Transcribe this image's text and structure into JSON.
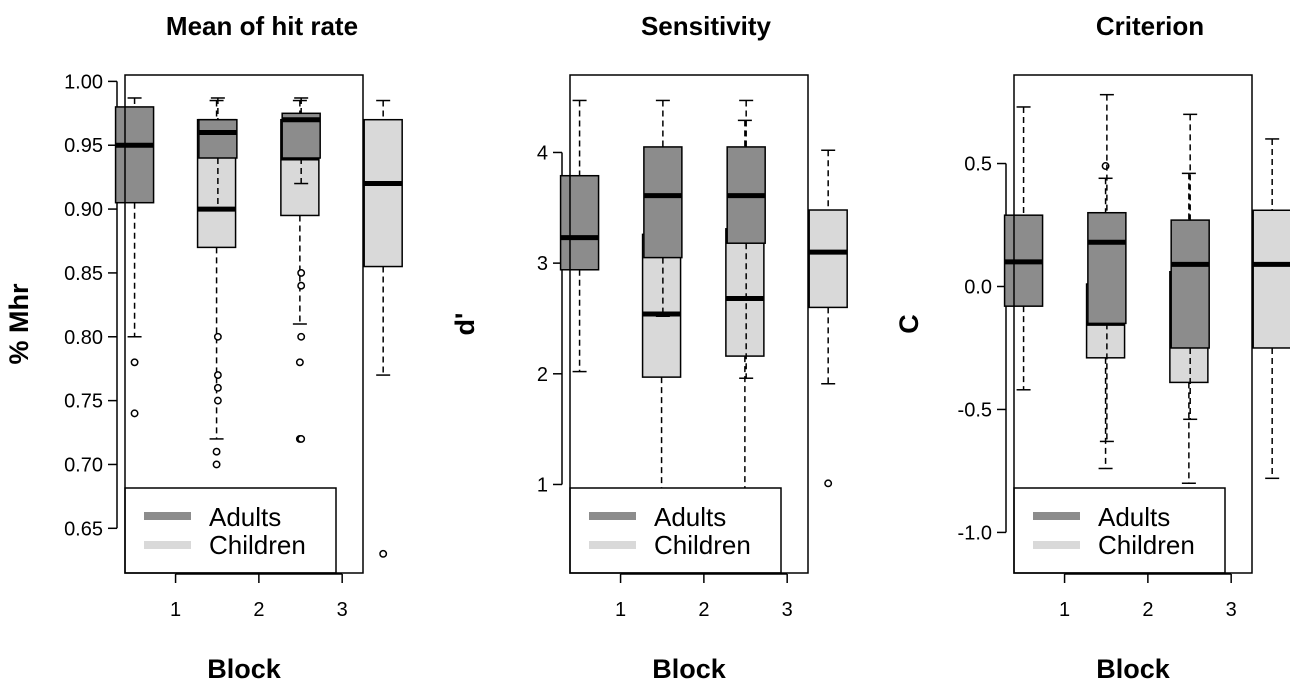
{
  "colors": {
    "adults": "#8c8c8c",
    "children": "#d9d9d9",
    "line": "#000000",
    "background": "#ffffff"
  },
  "chart_data": [
    {
      "type": "box",
      "title": "Mean of hit rate",
      "xlabel": "Block",
      "ylabel": "% Mhr",
      "ylim": [
        0.615,
        1.005
      ],
      "yticks": [
        0.65,
        0.7,
        0.75,
        0.8,
        0.85,
        0.9,
        0.95,
        1.0
      ],
      "ytick_labels": [
        "0.65",
        "0.70",
        "0.75",
        "0.80",
        "0.85",
        "0.90",
        "0.95",
        "1.00"
      ],
      "xtick_labels": [
        "1",
        "2",
        "3"
      ],
      "legend": {
        "position": "bottom-left",
        "entries": [
          "Adults",
          "Children"
        ]
      },
      "boxes": [
        {
          "block": "1",
          "group": "Adults",
          "whisker_low": 0.8,
          "q1": 0.905,
          "median": 0.95,
          "q3": 0.98,
          "whisker_high": 0.987,
          "outliers": [
            0.78,
            0.74
          ]
        },
        {
          "block": "1",
          "group": "Children",
          "whisker_low": 0.72,
          "q1": 0.87,
          "median": 0.9,
          "q3": 0.97,
          "whisker_high": 0.985,
          "outliers": [
            0.71,
            0.7
          ]
        },
        {
          "block": "2",
          "group": "Adults",
          "whisker_low": 0.9,
          "q1": 0.94,
          "median": 0.96,
          "q3": 0.97,
          "whisker_high": 0.987,
          "outliers": [
            0.8,
            0.77,
            0.76,
            0.75
          ]
        },
        {
          "block": "2",
          "group": "Children",
          "whisker_low": 0.81,
          "q1": 0.895,
          "median": 0.94,
          "q3": 0.97,
          "whisker_high": 0.985,
          "outliers": [
            0.78,
            0.72
          ]
        },
        {
          "block": "3",
          "group": "Adults",
          "whisker_low": 0.92,
          "q1": 0.94,
          "median": 0.97,
          "q3": 0.975,
          "whisker_high": 0.987,
          "outliers": [
            0.85,
            0.84,
            0.8,
            0.72
          ]
        },
        {
          "block": "3",
          "group": "Children",
          "whisker_low": 0.77,
          "q1": 0.855,
          "median": 0.92,
          "q3": 0.97,
          "whisker_high": 0.985,
          "outliers": [
            0.63
          ]
        }
      ]
    },
    {
      "type": "box",
      "title": "Sensitivity",
      "xlabel": "Block",
      "ylabel": "d'",
      "ylim": [
        0.2,
        4.7
      ],
      "yticks": [
        1,
        2,
        3,
        4
      ],
      "ytick_labels": [
        "1",
        "2",
        "3",
        "4"
      ],
      "xtick_labels": [
        "1",
        "2",
        "3"
      ],
      "legend": {
        "position": "bottom-left",
        "entries": [
          "Adults",
          "Children"
        ]
      },
      "boxes": [
        {
          "block": "1",
          "group": "Adults",
          "whisker_low": 2.02,
          "q1": 2.94,
          "median": 3.23,
          "q3": 3.79,
          "whisker_high": 4.47,
          "outliers": []
        },
        {
          "block": "1",
          "group": "Children",
          "whisker_low": 0.5,
          "q1": 1.97,
          "median": 2.54,
          "q3": 3.26,
          "whisker_high": 4.02,
          "outliers": []
        },
        {
          "block": "2",
          "group": "Adults",
          "whisker_low": 2.52,
          "q1": 3.05,
          "median": 3.61,
          "q3": 4.05,
          "whisker_high": 4.47,
          "outliers": []
        },
        {
          "block": "2",
          "group": "Children",
          "whisker_low": 0.95,
          "q1": 2.16,
          "median": 2.68,
          "q3": 3.31,
          "whisker_high": 4.29,
          "outliers": []
        },
        {
          "block": "3",
          "group": "Adults",
          "whisker_low": 1.96,
          "q1": 3.18,
          "median": 3.61,
          "q3": 4.05,
          "whisker_high": 4.47,
          "outliers": []
        },
        {
          "block": "3",
          "group": "Children",
          "whisker_low": 1.91,
          "q1": 2.6,
          "median": 3.1,
          "q3": 3.48,
          "whisker_high": 4.02,
          "outliers": [
            1.01
          ]
        }
      ]
    },
    {
      "type": "box",
      "title": "Criterion",
      "xlabel": "Block",
      "ylabel": "C",
      "ylim": [
        -1.165,
        0.86
      ],
      "yticks": [
        -1.0,
        -0.5,
        0.0,
        0.5
      ],
      "ytick_labels": [
        "-1.0",
        "-0.5",
        "0.0",
        "0.5"
      ],
      "xtick_labels": [
        "1",
        "2",
        "3"
      ],
      "legend": {
        "position": "bottom-left",
        "entries": [
          "Adults",
          "Children"
        ]
      },
      "boxes": [
        {
          "block": "1",
          "group": "Adults",
          "whisker_low": -0.42,
          "q1": -0.08,
          "median": 0.1,
          "q3": 0.29,
          "whisker_high": 0.73,
          "outliers": []
        },
        {
          "block": "1",
          "group": "Children",
          "whisker_low": -0.74,
          "q1": -0.29,
          "median": -0.15,
          "q3": 0.01,
          "whisker_high": 0.44,
          "outliers": [
            0.49
          ]
        },
        {
          "block": "2",
          "group": "Adults",
          "whisker_low": -0.63,
          "q1": -0.15,
          "median": 0.18,
          "q3": 0.3,
          "whisker_high": 0.78,
          "outliers": []
        },
        {
          "block": "2",
          "group": "Children",
          "whisker_low": -0.8,
          "q1": -0.39,
          "median": -0.17,
          "q3": 0.06,
          "whisker_high": 0.46,
          "outliers": []
        },
        {
          "block": "3",
          "group": "Adults",
          "whisker_low": -0.54,
          "q1": -0.25,
          "median": 0.09,
          "q3": 0.27,
          "whisker_high": 0.7,
          "outliers": []
        },
        {
          "block": "3",
          "group": "Children",
          "whisker_low": -0.78,
          "q1": -0.25,
          "median": 0.09,
          "q3": 0.31,
          "whisker_high": 0.6,
          "outliers": []
        }
      ]
    }
  ]
}
